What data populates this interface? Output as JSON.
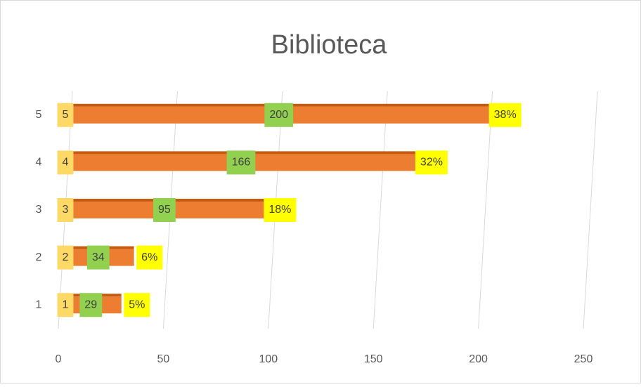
{
  "chart_data": {
    "type": "bar",
    "orientation": "horizontal",
    "stacked": true,
    "title": "Biblioteca",
    "categories": [
      "1",
      "2",
      "3",
      "4",
      "5"
    ],
    "series": [
      {
        "color": "#4472c4",
        "label_color": "#ffd966",
        "values": [
          1,
          2,
          3,
          4,
          5
        ]
      },
      {
        "color": "#ed7d31",
        "label_color": "#92d050",
        "values": [
          29,
          34,
          95,
          166,
          200
        ]
      },
      {
        "color": "#a5a5a5",
        "label_color": "#ffff00",
        "values": [
          0.05,
          0.06,
          0.18,
          0.32,
          0.38
        ],
        "value_labels": [
          "5%",
          "6%",
          "18%",
          "32%",
          "38%"
        ]
      }
    ],
    "xlim": [
      0,
      250
    ],
    "xticks": [
      0,
      50,
      100,
      150,
      200,
      250
    ],
    "grid": true
  }
}
